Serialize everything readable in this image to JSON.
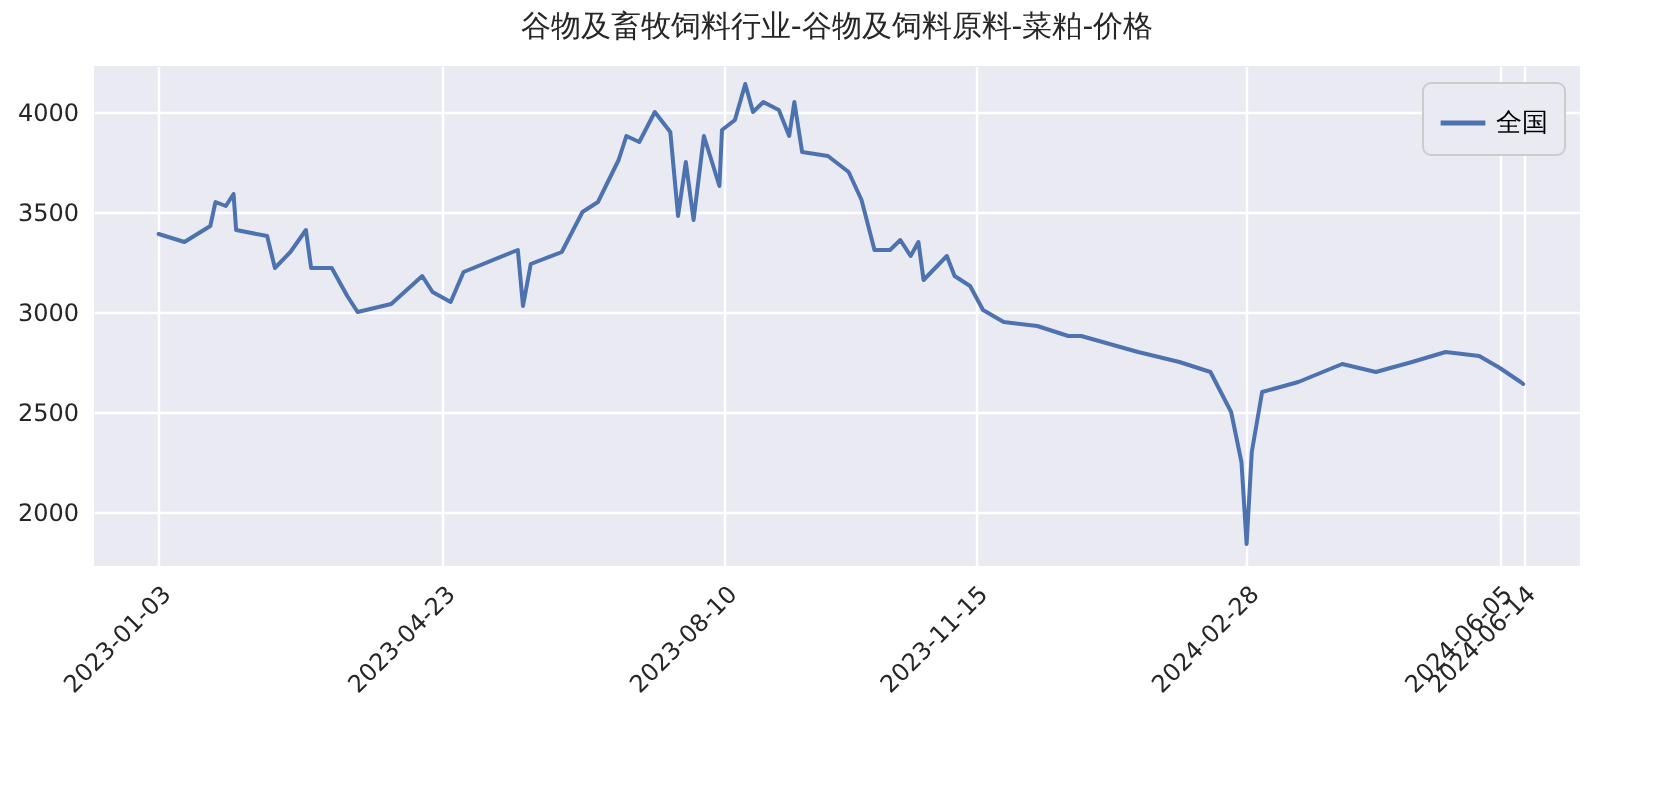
{
  "chart_data": {
    "type": "line",
    "title": "谷物及畜牧饲料行业-谷物及饲料原料-菜粕-价格",
    "x": [
      "2023-01-03",
      "2023-01-13",
      "2023-01-23",
      "2023-01-25",
      "2023-01-29",
      "2023-02-01",
      "2023-02-02",
      "2023-02-14",
      "2023-02-17",
      "2023-02-23",
      "2023-03-01",
      "2023-03-03",
      "2023-03-11",
      "2023-03-17",
      "2023-03-21",
      "2023-04-03",
      "2023-04-15",
      "2023-04-19",
      "2023-04-26",
      "2023-05-01",
      "2023-05-20",
      "2023-05-22",
      "2023-05-24",
      "2023-05-27",
      "2023-06-08",
      "2023-06-16",
      "2023-06-22",
      "2023-06-30",
      "2023-07-03",
      "2023-07-08",
      "2023-07-14",
      "2023-07-20",
      "2023-07-23",
      "2023-07-26",
      "2023-07-29",
      "2023-08-02",
      "2023-08-08",
      "2023-08-09",
      "2023-08-14",
      "2023-08-18",
      "2023-08-21",
      "2023-08-25",
      "2023-08-31",
      "2023-09-04",
      "2023-09-06",
      "2023-09-09",
      "2023-09-19",
      "2023-09-27",
      "2023-10-02",
      "2023-10-07",
      "2023-10-13",
      "2023-10-17",
      "2023-10-21",
      "2023-10-24",
      "2023-10-26",
      "2023-11-04",
      "2023-11-07",
      "2023-11-13",
      "2023-11-18",
      "2023-11-26",
      "2023-12-09",
      "2023-12-21",
      "2023-12-26",
      "2024-01-17",
      "2024-02-02",
      "2024-02-14",
      "2024-02-22",
      "2024-02-26",
      "2024-02-28",
      "2024-03-01",
      "2024-03-05",
      "2024-03-19",
      "2024-04-05",
      "2024-04-18",
      "2024-05-02",
      "2024-05-15",
      "2024-05-28",
      "2024-06-05",
      "2024-06-13",
      "2024-06-14"
    ],
    "series": [
      {
        "name": "全国",
        "color": "#4c72b0",
        "values": [
          3390,
          3350,
          3430,
          3550,
          3530,
          3590,
          3410,
          3380,
          3220,
          3300,
          3410,
          3220,
          3220,
          3080,
          3000,
          3040,
          3180,
          3100,
          3050,
          3200,
          3300,
          3310,
          3030,
          3240,
          3300,
          3500,
          3550,
          3760,
          3880,
          3850,
          4000,
          3900,
          3480,
          3750,
          3460,
          3880,
          3630,
          3910,
          3960,
          4140,
          4000,
          4050,
          4010,
          3880,
          4050,
          3800,
          3780,
          3700,
          3560,
          3310,
          3310,
          3360,
          3280,
          3350,
          3160,
          3280,
          3180,
          3130,
          3010,
          2950,
          2930,
          2880,
          2880,
          2800,
          2750,
          2700,
          2500,
          2250,
          1840,
          2300,
          2600,
          2650,
          2740,
          2700,
          2750,
          2800,
          2780,
          2720,
          2650,
          2640
        ]
      }
    ],
    "xlim": [
      "2022-12-09",
      "2024-07-06"
    ],
    "xticks": [
      "2023-01-03",
      "2023-04-23",
      "2023-08-10",
      "2023-11-15",
      "2024-02-28",
      "2024-06-05",
      "2024-06-14"
    ],
    "ylim": [
      1730,
      4230
    ],
    "yticks": [
      2000,
      2500,
      3000,
      3500,
      4000
    ],
    "grid": true,
    "legend": "top right",
    "line_style": "solid",
    "marker": "none"
  }
}
